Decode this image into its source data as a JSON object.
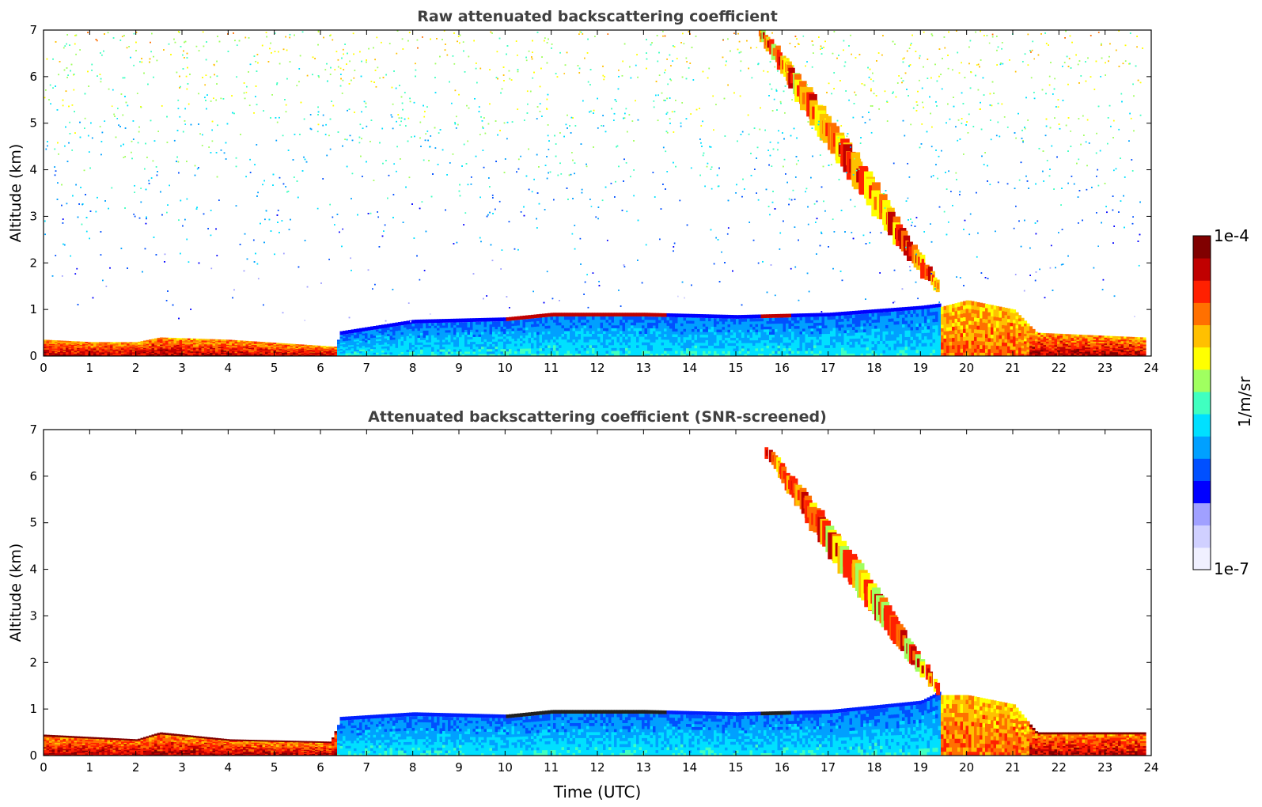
{
  "chart_data": [
    {
      "type": "heatmap",
      "title": "Raw attenuated backscattering coefficient",
      "xlabel": "",
      "ylabel": "Altitude (km)",
      "xlim": [
        0,
        24
      ],
      "ylim": [
        0,
        7
      ],
      "xticks": [
        "0",
        "1",
        "2",
        "3",
        "4",
        "5",
        "6",
        "7",
        "8",
        "9",
        "10",
        "11",
        "12",
        "13",
        "14",
        "15",
        "16",
        "17",
        "18",
        "19",
        "20",
        "21",
        "22",
        "23",
        "24"
      ],
      "yticks": [
        "0",
        "1",
        "2",
        "3",
        "4",
        "5",
        "6",
        "7"
      ],
      "boundary_layer_top_km": [
        [
          0,
          0.35
        ],
        [
          1,
          0.3
        ],
        [
          2,
          0.3
        ],
        [
          2.5,
          0.4
        ],
        [
          4,
          0.35
        ],
        [
          6.3,
          0.2
        ],
        [
          6.4,
          0.45
        ],
        [
          8,
          0.7
        ],
        [
          10,
          0.75
        ],
        [
          11,
          0.85
        ],
        [
          13,
          0.85
        ],
        [
          15,
          0.8
        ],
        [
          17,
          0.85
        ],
        [
          19,
          1.0
        ],
        [
          19.4,
          1.05
        ],
        [
          20,
          1.2
        ],
        [
          21,
          1.0
        ],
        [
          21.5,
          0.5
        ],
        [
          23.8,
          0.4
        ]
      ],
      "descending_layer": {
        "start_hour": 15.5,
        "start_alt_km": 7.0,
        "end_hour": 19.4,
        "end_alt_km": 1.4
      }
    },
    {
      "type": "heatmap",
      "title": "Attenuated backscattering coefficient (SNR-screened)",
      "xlabel": "Time (UTC)",
      "ylabel": "Altitude (km)",
      "xlim": [
        0,
        24
      ],
      "ylim": [
        0,
        7
      ],
      "xticks": [
        "0",
        "1",
        "2",
        "3",
        "4",
        "5",
        "6",
        "7",
        "8",
        "9",
        "10",
        "11",
        "12",
        "13",
        "14",
        "15",
        "16",
        "17",
        "18",
        "19",
        "20",
        "21",
        "22",
        "23",
        "24"
      ],
      "yticks": [
        "0",
        "1",
        "2",
        "3",
        "4",
        "5",
        "6",
        "7"
      ],
      "boundary_layer_top_km": [
        [
          0,
          0.45
        ],
        [
          1,
          0.4
        ],
        [
          2,
          0.35
        ],
        [
          2.5,
          0.5
        ],
        [
          4,
          0.35
        ],
        [
          6.2,
          0.3
        ],
        [
          6.4,
          0.75
        ],
        [
          8,
          0.85
        ],
        [
          10,
          0.8
        ],
        [
          11,
          0.9
        ],
        [
          13,
          0.9
        ],
        [
          15,
          0.85
        ],
        [
          17,
          0.9
        ],
        [
          19,
          1.1
        ],
        [
          19.4,
          1.3
        ],
        [
          20,
          1.3
        ],
        [
          21,
          1.1
        ],
        [
          21.5,
          0.5
        ],
        [
          23.8,
          0.5
        ]
      ],
      "descending_layer": {
        "start_hour": 15.7,
        "start_alt_km": 6.5,
        "end_hour": 19.4,
        "end_alt_km": 1.4
      }
    }
  ],
  "colorbar": {
    "label": "1/m/sr",
    "max_label": "1e-4",
    "min_label": "1e-7",
    "colors": [
      "#f0f0ff",
      "#d0d0ff",
      "#a0a0ff",
      "#0000ff",
      "#0050ff",
      "#00a0ff",
      "#00e0ff",
      "#40ffc0",
      "#a0ff60",
      "#ffff00",
      "#ffc000",
      "#ff7000",
      "#ff2000",
      "#c00000",
      "#800000"
    ]
  }
}
